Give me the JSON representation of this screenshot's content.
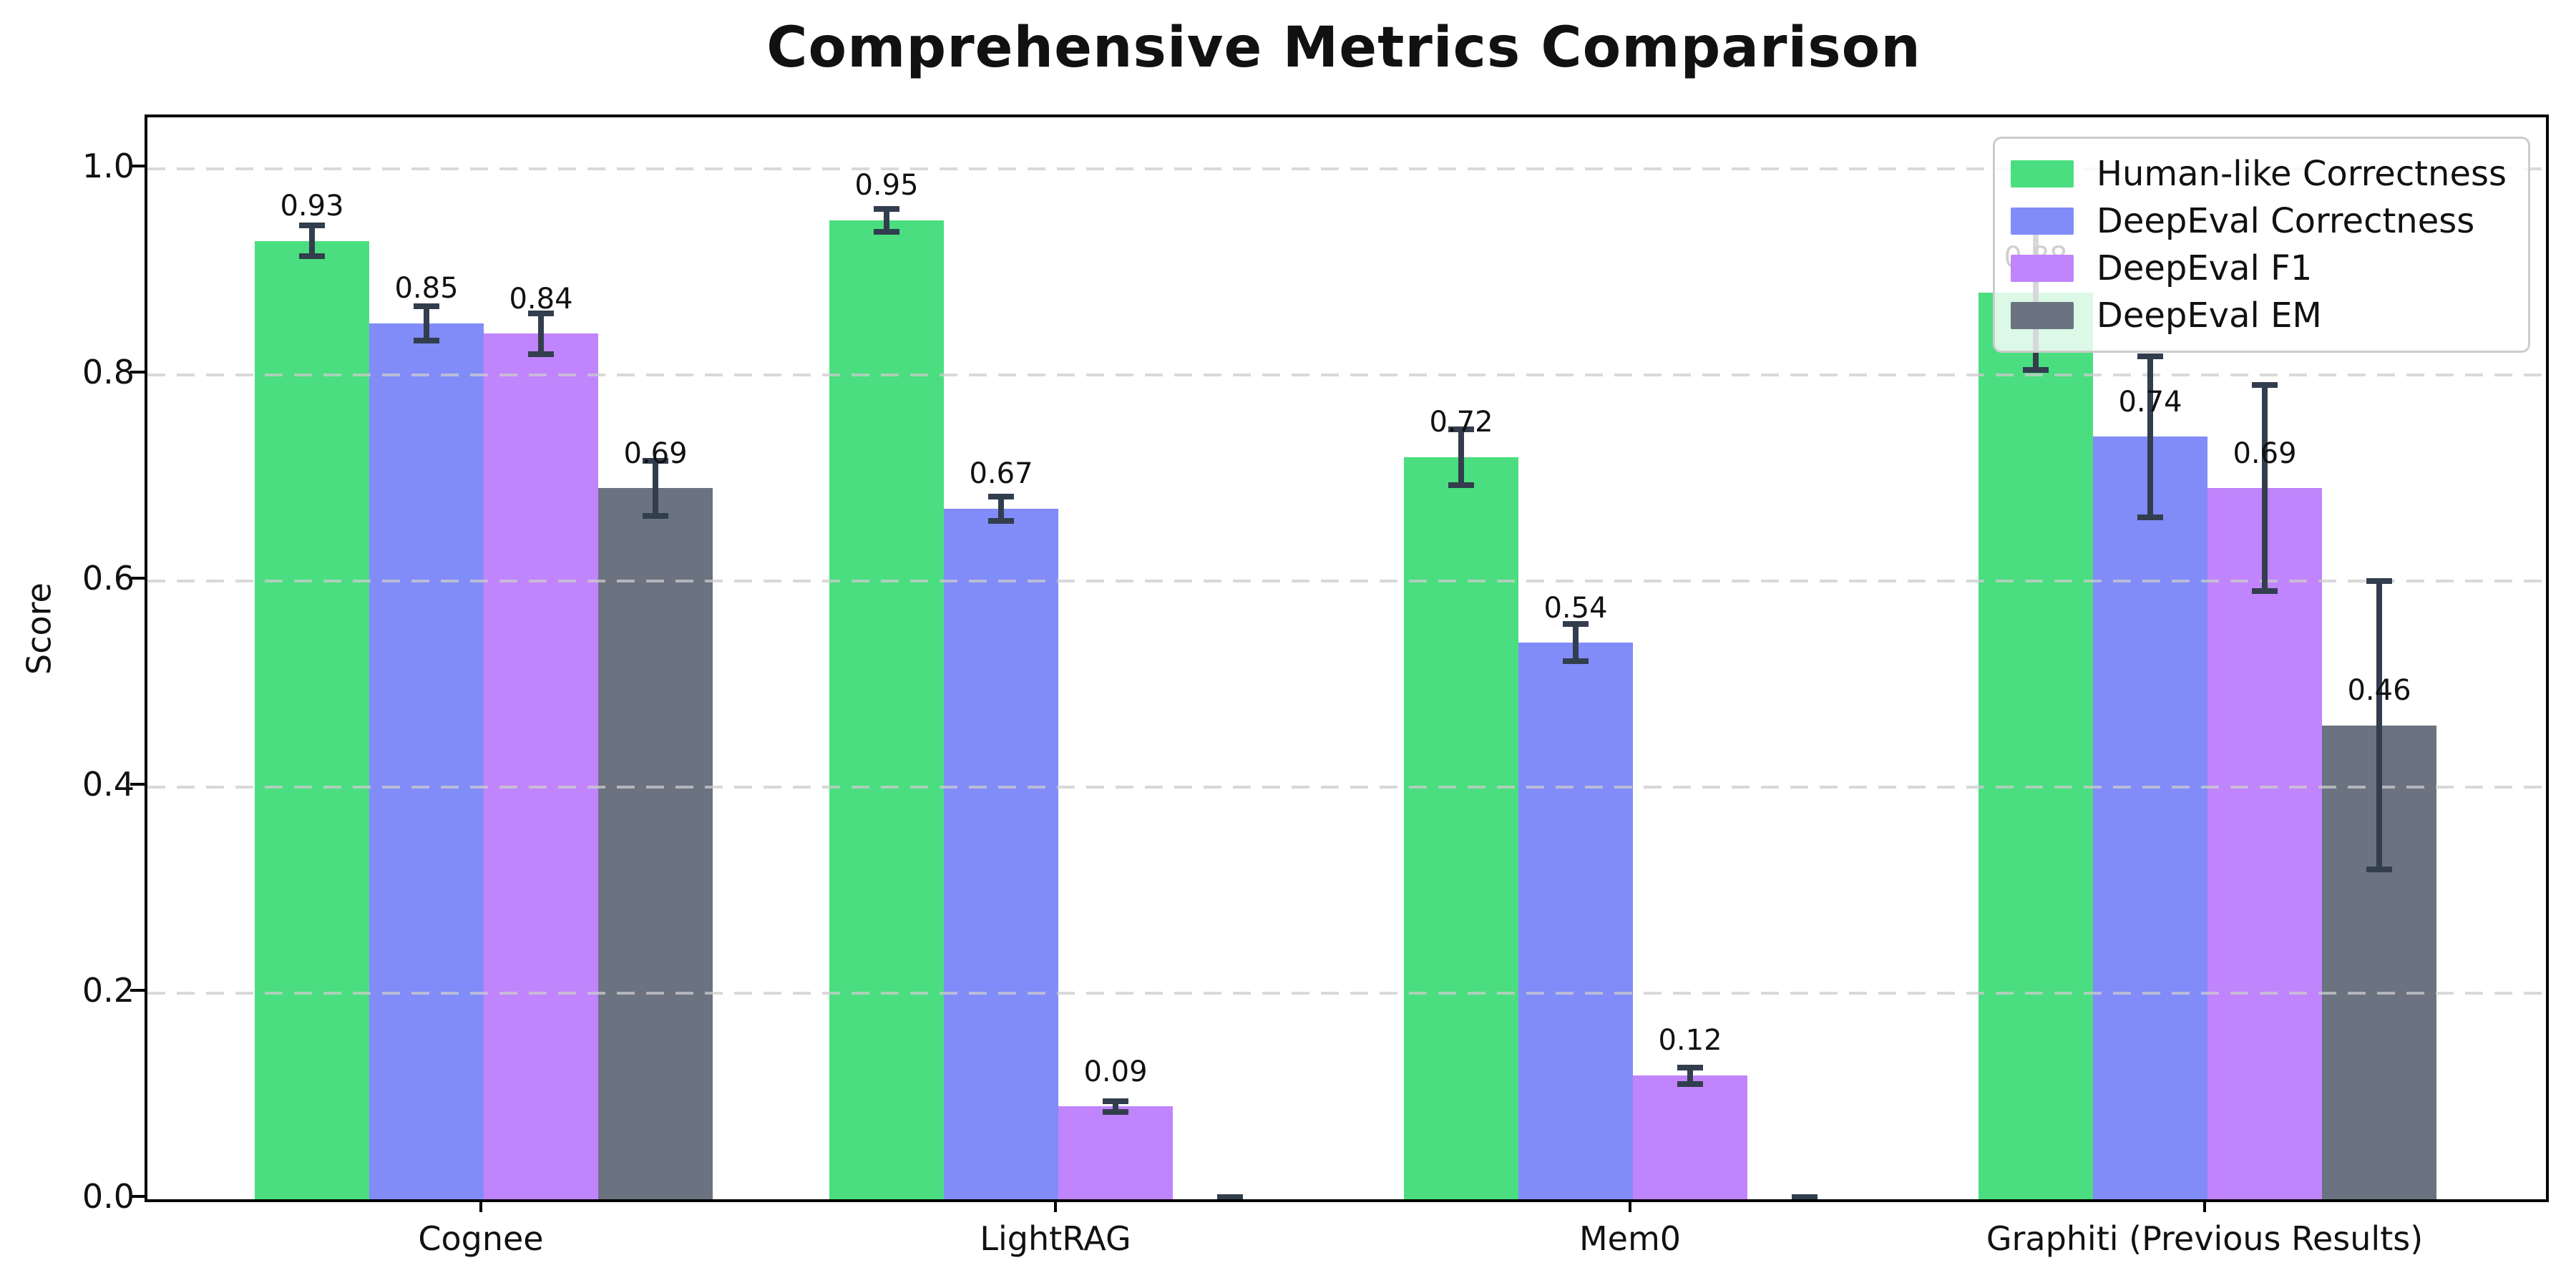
{
  "figure": {
    "title": "Comprehensive Metrics Comparison",
    "background_color": "#ffffff"
  },
  "chart_data": {
    "type": "bar",
    "title": "Comprehensive Metrics Comparison",
    "xlabel": "",
    "ylabel": "Score",
    "categories": [
      "Cognee",
      "LightRAG",
      "Mem0",
      "Graphiti (Previous Results)"
    ],
    "series": [
      {
        "name": "Human-like Correctness",
        "color": "#4ade80",
        "values": [
          0.93,
          0.95,
          0.72,
          0.88
        ],
        "errors": [
          0.015,
          0.011,
          0.027,
          0.075
        ],
        "bar_labels": [
          "0.93",
          "0.95",
          "0.72",
          "0.88"
        ]
      },
      {
        "name": "DeepEval Correctness",
        "color": "#818cf8",
        "values": [
          0.85,
          0.67,
          0.54,
          0.74
        ],
        "errors": [
          0.017,
          0.012,
          0.018,
          0.078
        ],
        "bar_labels": [
          "0.85",
          "0.67",
          "0.54",
          "0.74"
        ]
      },
      {
        "name": "DeepEval F1",
        "color": "#c084fc",
        "values": [
          0.84,
          0.09,
          0.12,
          0.69
        ],
        "errors": [
          0.02,
          0.005,
          0.008,
          0.1
        ],
        "bar_labels": [
          "0.84",
          "0.09",
          "0.12",
          "0.69"
        ]
      },
      {
        "name": "DeepEval EM",
        "color": "#6b7280",
        "values": [
          0.69,
          0.0,
          0.0,
          0.46
        ],
        "errors": [
          0.027,
          0.002,
          0.002,
          0.14
        ],
        "bar_labels": [
          "0.69",
          "",
          "",
          "0.46"
        ]
      }
    ],
    "ylim": [
      0.0,
      1.05
    ],
    "yticks": [
      0.0,
      0.2,
      0.4,
      0.6,
      0.8,
      1.0
    ],
    "ytick_labels": [
      "0.0",
      "0.2",
      "0.4",
      "0.6",
      "0.8",
      "1.0"
    ],
    "grid": "horizontal dashed gridlines drawn over bars",
    "gridline_color": "#cccccc",
    "error_bar_color": "#323e4d",
    "legend_position": "upper right",
    "legend_frame_color": "#cccccc"
  }
}
